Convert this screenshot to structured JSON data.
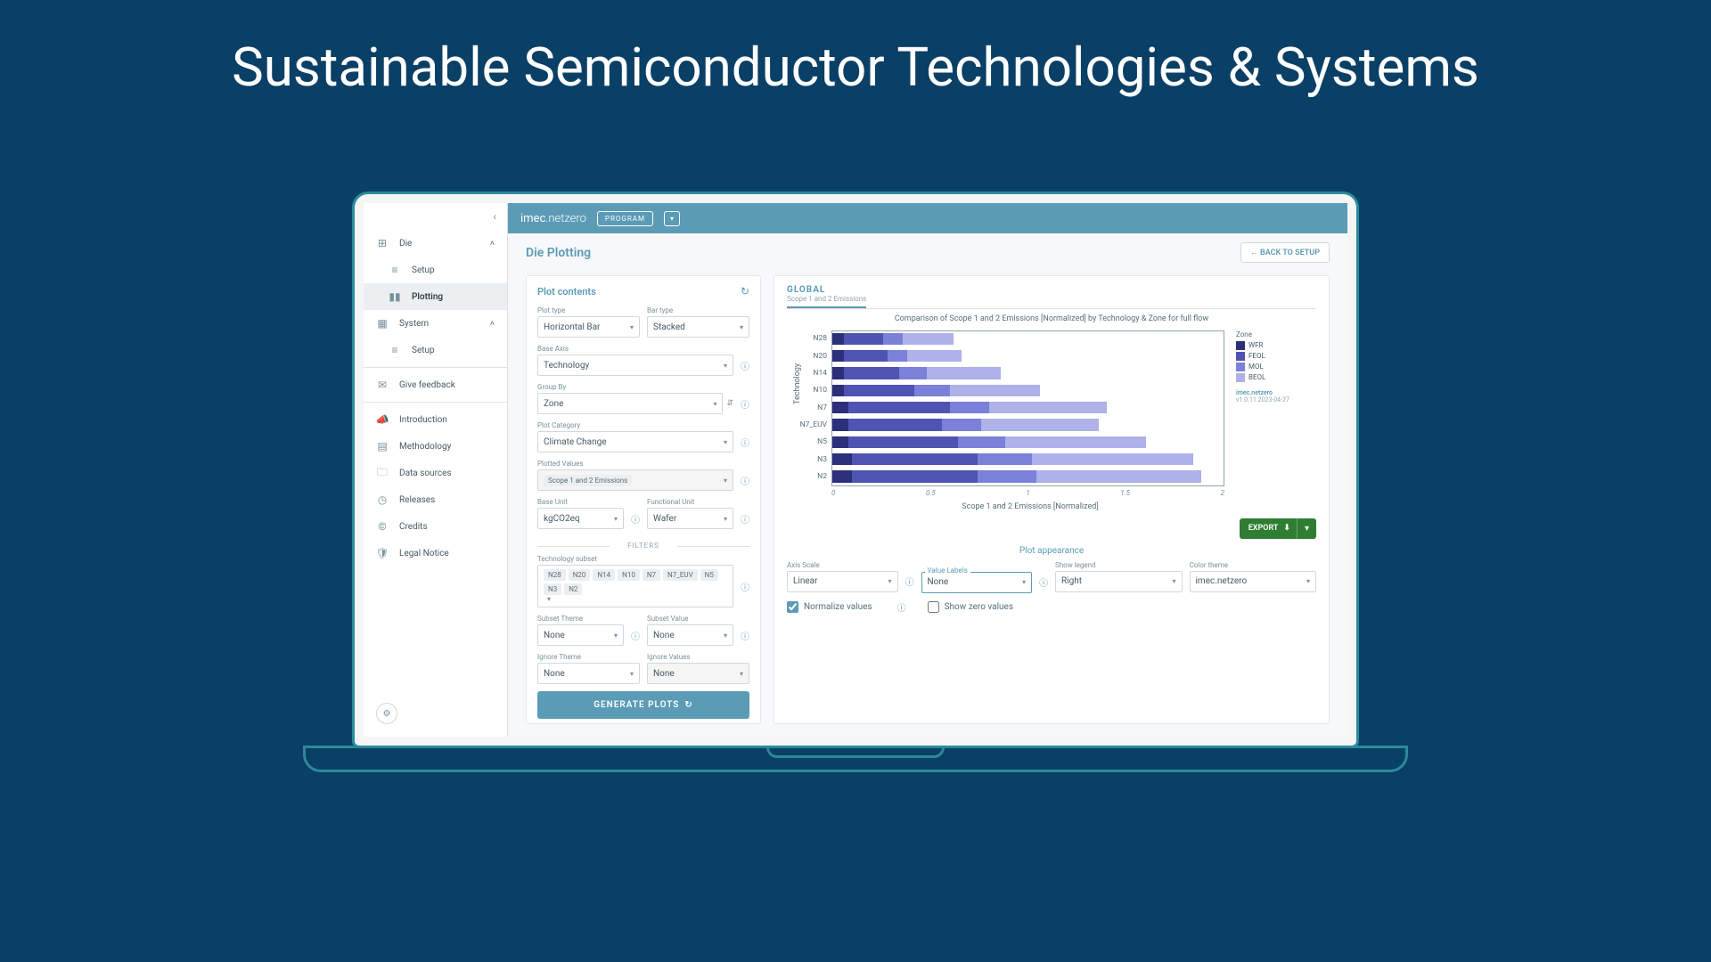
{
  "title": "Sustainable Semiconductor Technologies & Systems",
  "brand": {
    "pre": "imec",
    "post": ".netzero"
  },
  "topbar": {
    "program": "PROGRAM"
  },
  "sidebar": {
    "collapse": "‹",
    "die": "Die",
    "setup": "Setup",
    "plotting": "Plotting",
    "system": "System",
    "setup2": "Setup",
    "feedback": "Give feedback",
    "intro": "Introduction",
    "method": "Methodology",
    "data": "Data sources",
    "releases": "Releases",
    "credits": "Credits",
    "legal": "Legal Notice"
  },
  "page": {
    "title": "Die Plotting",
    "back": "←  BACK TO SETUP"
  },
  "plotContents": {
    "title": "Plot contents",
    "plotType": {
      "label": "Plot type",
      "value": "Horizontal Bar"
    },
    "barType": {
      "label": "Bar type",
      "value": "Stacked"
    },
    "baseAxis": {
      "label": "Base Axis",
      "value": "Technology"
    },
    "groupBy": {
      "label": "Group By",
      "value": "Zone"
    },
    "category": {
      "label": "Plot Category",
      "value": "Climate Change"
    },
    "plotted": {
      "label": "Plotted Values",
      "value": "Scope 1 and 2 Emissions"
    },
    "baseUnit": {
      "label": "Base Unit",
      "value": "kgCO2eq"
    },
    "funcUnit": {
      "label": "Functional Unit",
      "value": "Wafer"
    },
    "filters": "FILTERS",
    "techSubset": {
      "label": "Technology subset",
      "chips": [
        "N28",
        "N20",
        "N14",
        "N10",
        "N7",
        "N7_EUV",
        "N5",
        "N3",
        "N2"
      ]
    },
    "subsetTheme": {
      "label": "Subset Theme",
      "value": "None"
    },
    "subsetValue": {
      "label": "Subset Value",
      "value": "None"
    },
    "ignoreTheme": {
      "label": "Ignore Theme",
      "value": "None"
    },
    "ignoreValues": {
      "label": "Ignore Values",
      "value": "None"
    },
    "generate": "GENERATE PLOTS"
  },
  "chartTab": {
    "title": "GLOBAL",
    "sub": "Scope 1 and 2 Emissions"
  },
  "chart": {
    "title": "Comparison of Scope 1 and 2 Emissions [Normalized] by Technology & Zone for full flow",
    "yLabel": "Technology",
    "xLabel": "Scope 1 and 2 Emissions [Normalized]",
    "categories": [
      "N28",
      "N20",
      "N14",
      "N10",
      "N7",
      "N7_EUV",
      "N5",
      "N3",
      "N2"
    ],
    "xTicks": [
      "0",
      "0.5",
      "1",
      "1.5",
      "2"
    ],
    "legend": {
      "title": "Zone",
      "items": [
        "WFR",
        "FEOL",
        "MOL",
        "BEOL"
      ]
    },
    "colors": {
      "WFR": "#2c2f7a",
      "FEOL": "#4f54b3",
      "MOL": "#7b80d9",
      "BEOL": "#aeb2e8"
    },
    "data": [
      {
        "WFR": 3,
        "FEOL": 10,
        "MOL": 5,
        "BEOL": 13
      },
      {
        "WFR": 3,
        "FEOL": 11,
        "MOL": 5,
        "BEOL": 14
      },
      {
        "WFR": 3,
        "FEOL": 14,
        "MOL": 7,
        "BEOL": 19
      },
      {
        "WFR": 3,
        "FEOL": 18,
        "MOL": 9,
        "BEOL": 23
      },
      {
        "WFR": 4,
        "FEOL": 26,
        "MOL": 10,
        "BEOL": 30
      },
      {
        "WFR": 4,
        "FEOL": 24,
        "MOL": 10,
        "BEOL": 30
      },
      {
        "WFR": 4,
        "FEOL": 28,
        "MOL": 12,
        "BEOL": 36
      },
      {
        "WFR": 5,
        "FEOL": 32,
        "MOL": 14,
        "BEOL": 41
      },
      {
        "WFR": 5,
        "FEOL": 32,
        "MOL": 15,
        "BEOL": 42
      }
    ],
    "watermark": {
      "brand": "imec.netzero",
      "ver": "v1.0.11 2023-04-27"
    }
  },
  "export": "EXPORT",
  "appearance": {
    "title": "Plot appearance",
    "axisScale": {
      "label": "Axis Scale",
      "value": "Linear"
    },
    "valueLabels": {
      "label": "Value Labels",
      "value": "None"
    },
    "showLegend": {
      "label": "Show legend",
      "value": "Right"
    },
    "colorTheme": {
      "label": "Color theme",
      "value": "imec.netzero"
    },
    "normalize": "Normalize values",
    "showZero": "Show zero values"
  }
}
